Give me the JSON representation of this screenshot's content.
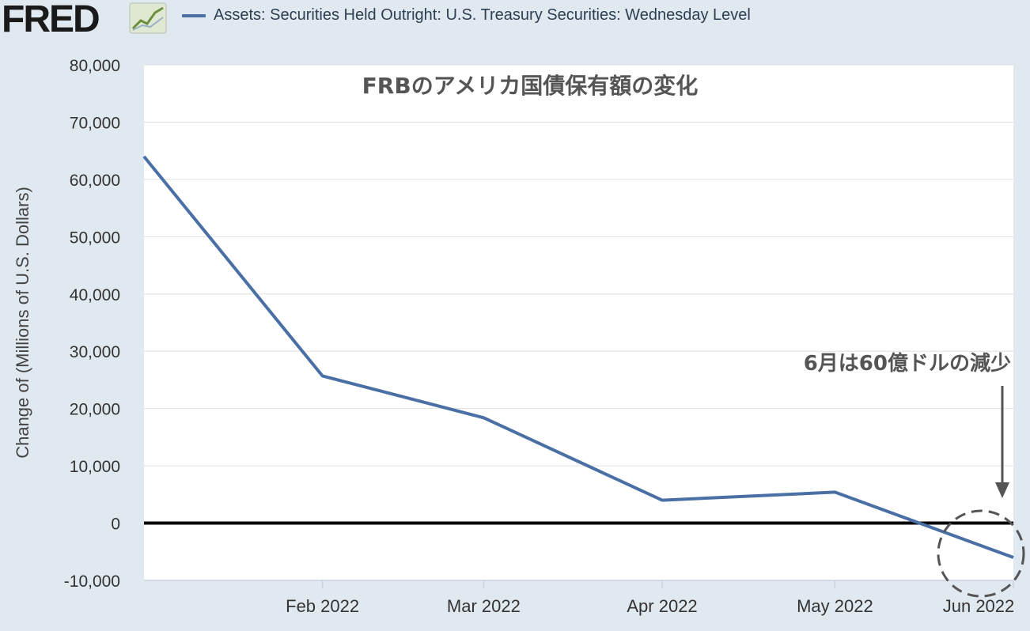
{
  "header": {
    "logo_text": "FRED",
    "legend_label": "Assets: Securities Held Outright: U.S. Treasury Securities: Wednesday Level"
  },
  "colors": {
    "series": "#4a6fa5",
    "background": "#e1e9f0",
    "plot": "#ffffff",
    "zero_line": "#000000",
    "annotation": "#555555"
  },
  "chart_data": {
    "type": "line",
    "title": "",
    "ylabel": "Change of (Millions of U.S. Dollars)",
    "xlabel": "",
    "ylim": [
      -10000,
      80000
    ],
    "yticks": [
      80000,
      70000,
      60000,
      50000,
      40000,
      30000,
      20000,
      10000,
      0,
      -10000
    ],
    "ytick_labels": [
      "80,000",
      "70,000",
      "60,000",
      "50,000",
      "40,000",
      "30,000",
      "20,000",
      "10,000",
      "0",
      "-10,000"
    ],
    "xticks": [
      "Feb 2022",
      "Mar 2022",
      "Apr 2022",
      "May 2022",
      "Jun 2022"
    ],
    "x": [
      "2022-01-01",
      "2022-02-01",
      "2022-03-01",
      "2022-04-01",
      "2022-05-01",
      "2022-06-01"
    ],
    "series": [
      {
        "name": "Assets: Securities Held Outright: U.S. Treasury Securities: Wednesday Level",
        "values": [
          64000,
          25700,
          18400,
          4000,
          5400,
          -6000
        ]
      }
    ],
    "grid": true,
    "legend": "top",
    "annotations": [
      {
        "text": "FRBのアメリカ国債保有額の変化"
      },
      {
        "text": "6月は60億ドルの減少"
      }
    ]
  }
}
